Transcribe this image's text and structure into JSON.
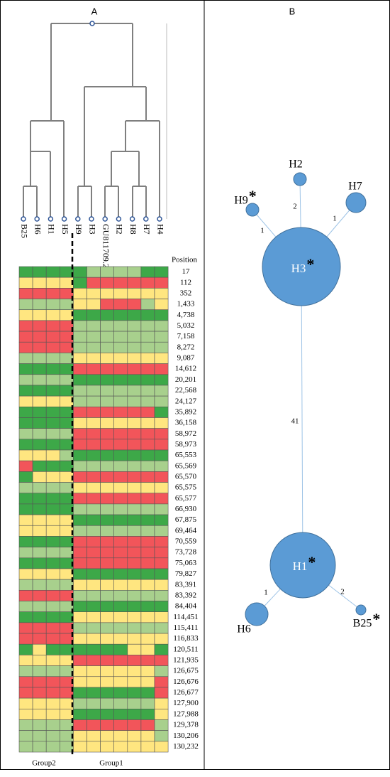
{
  "panel_a": {
    "label": "A",
    "dendrogram": {
      "leaves": [
        "B25",
        "H6",
        "H1",
        "H5",
        "H9",
        "H3",
        "GU811709.2",
        "H2",
        "H8",
        "H7",
        "H4"
      ]
    },
    "heatmap": {
      "header": "Position",
      "colors": {
        "G": "#3da848",
        "L": "#a8d08d",
        "Y": "#ffe680",
        "R": "#f2555a"
      },
      "rows": [
        {
          "position": "17",
          "cells": "GGGGGLLLLGG"
        },
        {
          "position": "112",
          "cells": "YYYYGRRRRRR"
        },
        {
          "position": "352",
          "cells": "RRRRYYYYYYY"
        },
        {
          "position": "1,433",
          "cells": "LLLLYYRRRLY"
        },
        {
          "position": "4,738",
          "cells": "YYYYGGGGGGG"
        },
        {
          "position": "5,032",
          "cells": "RRRRLLLLLLL"
        },
        {
          "position": "7,158",
          "cells": "RRRRLLLLLLL"
        },
        {
          "position": "8,272",
          "cells": "RRRRLLLLLLL"
        },
        {
          "position": "9,087",
          "cells": "LLLLYYYYYYY"
        },
        {
          "position": "14,612",
          "cells": "GGGGRRRRRRR"
        },
        {
          "position": "20,201",
          "cells": "LLLLGGGGGGG"
        },
        {
          "position": "22,568",
          "cells": "GGGGLLLLLLL"
        },
        {
          "position": "24,127",
          "cells": "YYYYLLLLLLL"
        },
        {
          "position": "35,892",
          "cells": "GGGGRRRRRRG"
        },
        {
          "position": "36,158",
          "cells": "GGGGYYYYYYY"
        },
        {
          "position": "58,972",
          "cells": "LLLLRRRRRRR"
        },
        {
          "position": "58,973",
          "cells": "GGGGRRRRRRR"
        },
        {
          "position": "65,553",
          "cells": "YYYLGGGGGGG"
        },
        {
          "position": "65,569",
          "cells": "RGGGLLLLLLL"
        },
        {
          "position": "65,570",
          "cells": "GYYYRRRRRRR"
        },
        {
          "position": "65,575",
          "cells": "LLLLYYYYYYY"
        },
        {
          "position": "65,577",
          "cells": "GGGGRRRRRRR"
        },
        {
          "position": "66,930",
          "cells": "GGGGLLLLLLL"
        },
        {
          "position": "67,875",
          "cells": "YYYYGGGGGGG"
        },
        {
          "position": "69,464",
          "cells": "YYYYLLLLLLL"
        },
        {
          "position": "70,559",
          "cells": "GGGGRRRRRRR"
        },
        {
          "position": "73,728",
          "cells": "LLLLRRRRRRR"
        },
        {
          "position": "75,063",
          "cells": "GGGGRRRRRRR"
        },
        {
          "position": "79,827",
          "cells": "YYYYGGGGGGG"
        },
        {
          "position": "83,391",
          "cells": "LLLLYYYYYYY"
        },
        {
          "position": "83,392",
          "cells": "RRRRLLLLLLL"
        },
        {
          "position": "84,404",
          "cells": "LLLLGGGGGGG"
        },
        {
          "position": "114,451",
          "cells": "GGGGYYYYYYY"
        },
        {
          "position": "115,411",
          "cells": "RRRRLLLLLLL"
        },
        {
          "position": "116,833",
          "cells": "RRRRYYYYYYY"
        },
        {
          "position": "120,511",
          "cells": "GYGGGGGGYYG"
        },
        {
          "position": "121,935",
          "cells": "YYYYRRRRRRR"
        },
        {
          "position": "126,675",
          "cells": "LLLLYYYYYYL"
        },
        {
          "position": "126,676",
          "cells": "RRRRYYYYYYR"
        },
        {
          "position": "126,677",
          "cells": "RRRRGGGGGGR"
        },
        {
          "position": "127,900",
          "cells": "YYYYLLLLLLY"
        },
        {
          "position": "127,988",
          "cells": "YYYYGGGGGGY"
        },
        {
          "position": "129,378",
          "cells": "LLLLRRRRRRL"
        },
        {
          "position": "130,206",
          "cells": "LLLLYYYYYYL"
        },
        {
          "position": "130,232",
          "cells": "LLLLYYYYYYY"
        }
      ]
    },
    "groups": [
      "Group2",
      "Group1"
    ]
  },
  "panel_b": {
    "label": "B",
    "nodes": [
      {
        "label": "H3",
        "mark": "*"
      },
      {
        "label": "H2"
      },
      {
        "label": "H7"
      },
      {
        "label": "H9",
        "mark": "*"
      },
      {
        "label": "H1",
        "mark": "*"
      },
      {
        "label": "H6"
      },
      {
        "label": "B25",
        "mark": "*"
      }
    ],
    "edges": [
      {
        "label": "2"
      },
      {
        "label": "1"
      },
      {
        "label": "1"
      },
      {
        "label": "41"
      },
      {
        "label": "1"
      },
      {
        "label": "2"
      }
    ]
  }
}
